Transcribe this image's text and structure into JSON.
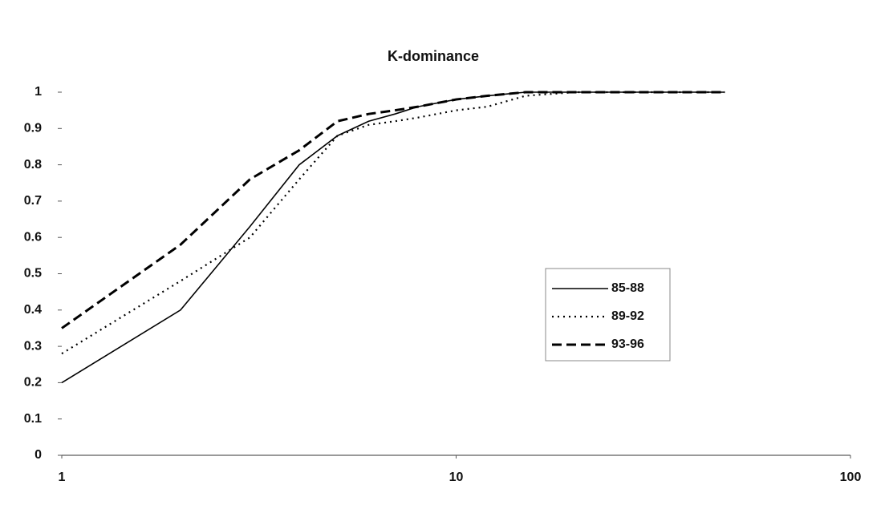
{
  "chart_data": {
    "type": "line",
    "title": "K-dominance",
    "xscale": "log",
    "xlim": [
      1,
      100
    ],
    "xticks": [
      1,
      10,
      100
    ],
    "ylim": [
      0,
      1
    ],
    "yticks": [
      0,
      0.1,
      0.2,
      0.3,
      0.4,
      0.5,
      0.6,
      0.7,
      0.8,
      0.9,
      1
    ],
    "grid": false,
    "legend": "center-right",
    "x": [
      1,
      2,
      3,
      4,
      5,
      6,
      7,
      8,
      10,
      12,
      15,
      20,
      30,
      48
    ],
    "series": [
      {
        "name": "85-88",
        "color": "#000000",
        "dash": "solid",
        "values": [
          0.2,
          0.4,
          0.63,
          0.8,
          0.88,
          0.92,
          0.94,
          0.96,
          0.98,
          0.99,
          1.0,
          1.0,
          1.0,
          1.0
        ]
      },
      {
        "name": "89-92",
        "color": "#000000",
        "dash": "dotted",
        "values": [
          0.28,
          0.48,
          0.6,
          0.76,
          0.88,
          0.91,
          0.92,
          0.93,
          0.95,
          0.96,
          0.99,
          1.0,
          1.0,
          1.0
        ]
      },
      {
        "name": "93-96",
        "color": "#000000",
        "dash": "dashed",
        "values": [
          0.35,
          0.58,
          0.76,
          0.84,
          0.92,
          0.94,
          0.95,
          0.96,
          0.98,
          0.99,
          1.0,
          1.0,
          1.0,
          1.0
        ]
      }
    ]
  }
}
